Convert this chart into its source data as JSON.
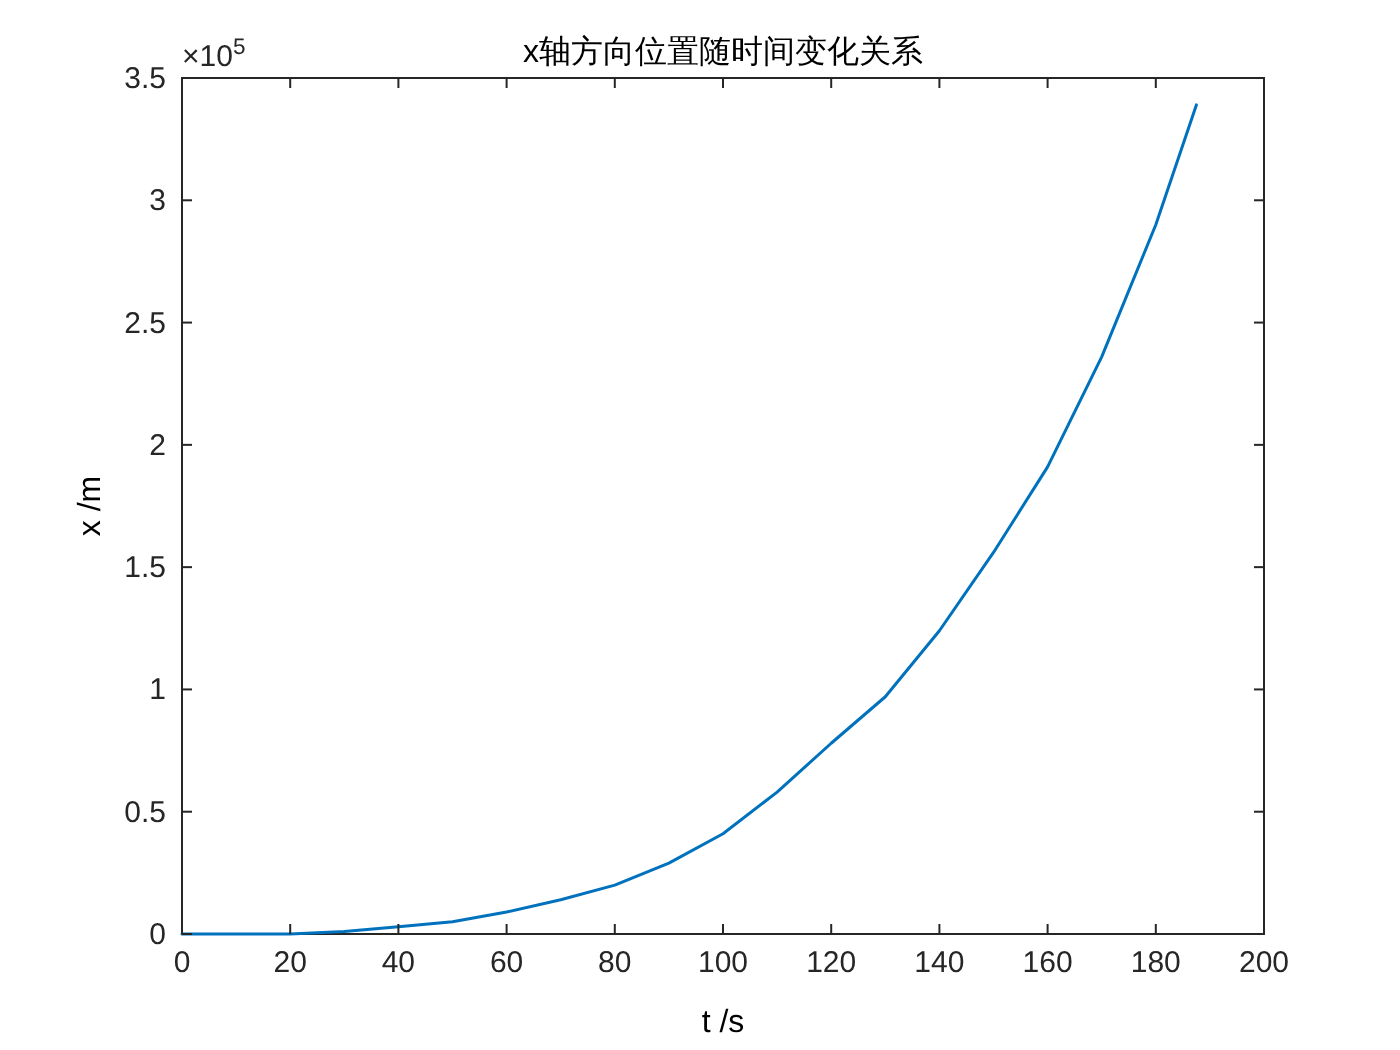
{
  "chart_data": {
    "type": "line",
    "title": "x轴方向位置随时间变化关系",
    "xlabel": "t  /s",
    "ylabel": "x  /m",
    "annotations": [
      "×10$^{5}$"
    ],
    "x": [
      0,
      10,
      20,
      30,
      40,
      50,
      60,
      70,
      80,
      90,
      100,
      110,
      120,
      130,
      140,
      150,
      160,
      170,
      180,
      187.5
    ],
    "series": [
      {
        "color": "#0072bd",
        "values": [
          0,
          0,
          0,
          0.01,
          0.03,
          0.05,
          0.09,
          0.14,
          0.2,
          0.29,
          0.41,
          0.58,
          0.78,
          0.97,
          1.24,
          1.56,
          1.91,
          2.36,
          2.9,
          3.39
        ]
      }
    ],
    "xlim": [
      0,
      200
    ],
    "xticks": [
      0,
      20,
      40,
      60,
      80,
      100,
      120,
      140,
      160,
      180,
      200
    ],
    "ylim": [
      0,
      3.5
    ],
    "yticks": [
      0,
      0.5,
      1,
      1.5,
      2,
      2.5,
      3,
      3.5
    ],
    "grid": false
  }
}
